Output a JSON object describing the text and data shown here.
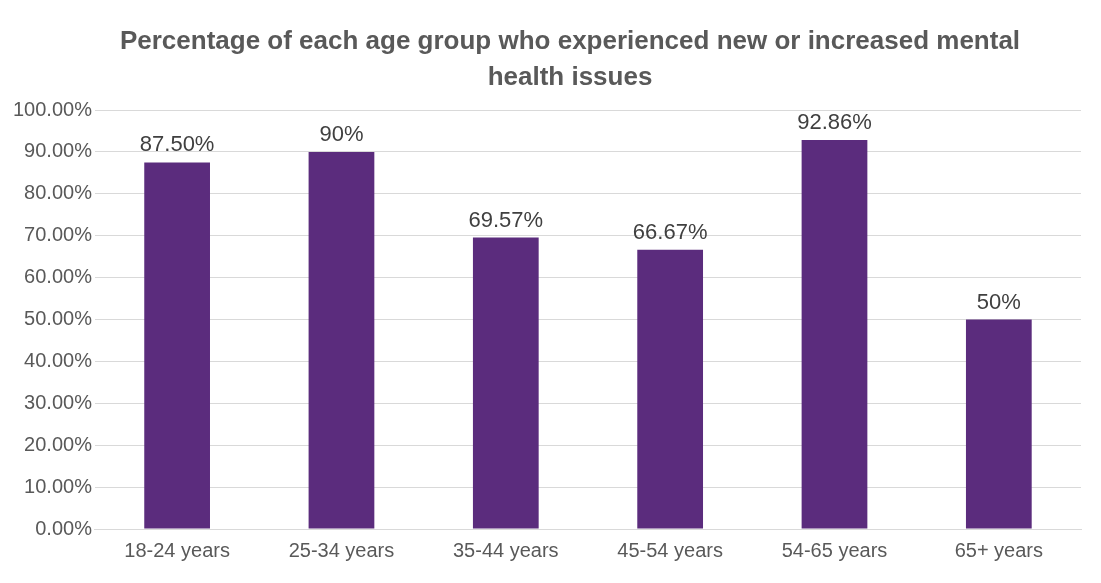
{
  "chart_data": {
    "type": "bar",
    "title": "Percentage of each age group who experienced new or increased mental health issues",
    "categories": [
      "18-24 years",
      "25-34 years",
      "35-44 years",
      "45-54 years",
      "54-65 years",
      "65+ years"
    ],
    "values": [
      87.5,
      90,
      69.57,
      66.67,
      92.86,
      50
    ],
    "value_labels": [
      "87.50%",
      "90%",
      "69.57%",
      "66.67%",
      "92.86%",
      "50%"
    ],
    "color": "#5b2c7d",
    "ylim": [
      0,
      100
    ],
    "yticks": [
      {
        "value": 0,
        "label": "0.00%"
      },
      {
        "value": 10,
        "label": "10.00%"
      },
      {
        "value": 20,
        "label": "20.00%"
      },
      {
        "value": 30,
        "label": "30.00%"
      },
      {
        "value": 40,
        "label": "40.00%"
      },
      {
        "value": 50,
        "label": "50.00%"
      },
      {
        "value": 60,
        "label": "60.00%"
      },
      {
        "value": 70,
        "label": "70.00%"
      },
      {
        "value": 80,
        "label": "80.00%"
      },
      {
        "value": 90,
        "label": "90.00%"
      },
      {
        "value": 100,
        "label": "100.00%"
      }
    ],
    "grid": "y",
    "legend": false
  }
}
